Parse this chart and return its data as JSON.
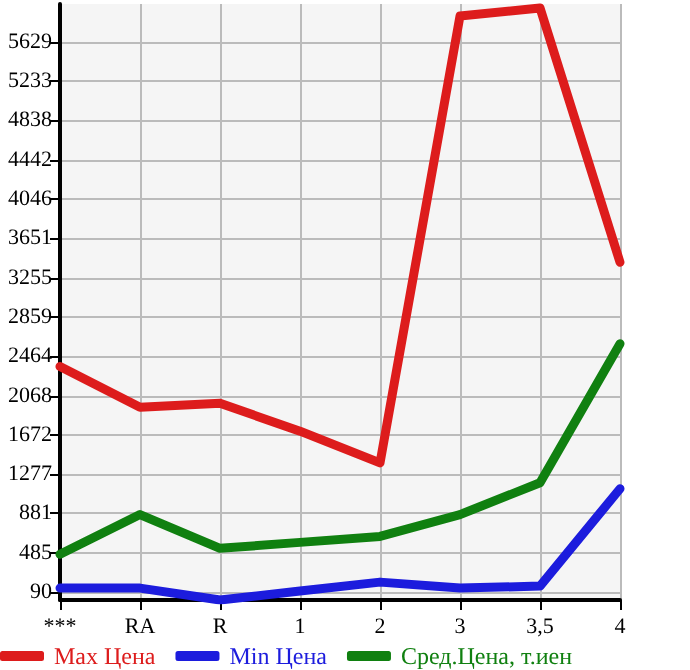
{
  "chart_data": {
    "type": "line",
    "categories": [
      "***",
      "RA",
      "R",
      "1",
      "2",
      "3",
      "3,5",
      "4"
    ],
    "series": [
      {
        "name": "Max Цена",
        "color": "#dd1c1c",
        "values": [
          2360,
          1950,
          1990,
          1710,
          1390,
          5890,
          5970,
          3410
        ]
      },
      {
        "name": "Min Цена",
        "color": "#1c1cdd",
        "values": [
          130,
          130,
          10,
          100,
          190,
          130,
          150,
          1130
        ]
      },
      {
        "name": "Сред.Цена, т.иен",
        "color": "#108010",
        "values": [
          470,
          870,
          530,
          590,
          650,
          870,
          1190,
          2590
        ]
      }
    ],
    "ylim": [
      10,
      6010
    ],
    "yticks": [
      90,
      485,
      881,
      1277,
      1672,
      2068,
      2464,
      2859,
      3255,
      3651,
      4046,
      4442,
      4838,
      5233,
      5629
    ],
    "grid": true,
    "legend": "bottom",
    "marker": "none",
    "line_style": "solid"
  }
}
